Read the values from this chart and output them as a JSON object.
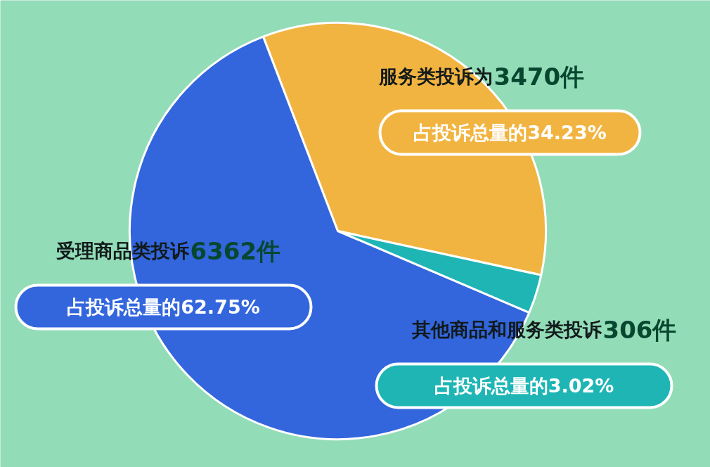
{
  "chart_data": {
    "type": "pie",
    "categories": [
      "服务类投诉为",
      "其他商品和服务类投诉",
      "受理商品类投诉"
    ],
    "values": [
      3470,
      306,
      6362
    ],
    "value_labels": [
      "3470件",
      "306件",
      "6362件"
    ],
    "colors": [
      "#f2b441",
      "#1fb5b5",
      "#3366dd"
    ],
    "annotations": [
      "占投诉总量的34.23%",
      "占投诉总量的3.02%",
      "占投诉总量的62.75%"
    ]
  }
}
